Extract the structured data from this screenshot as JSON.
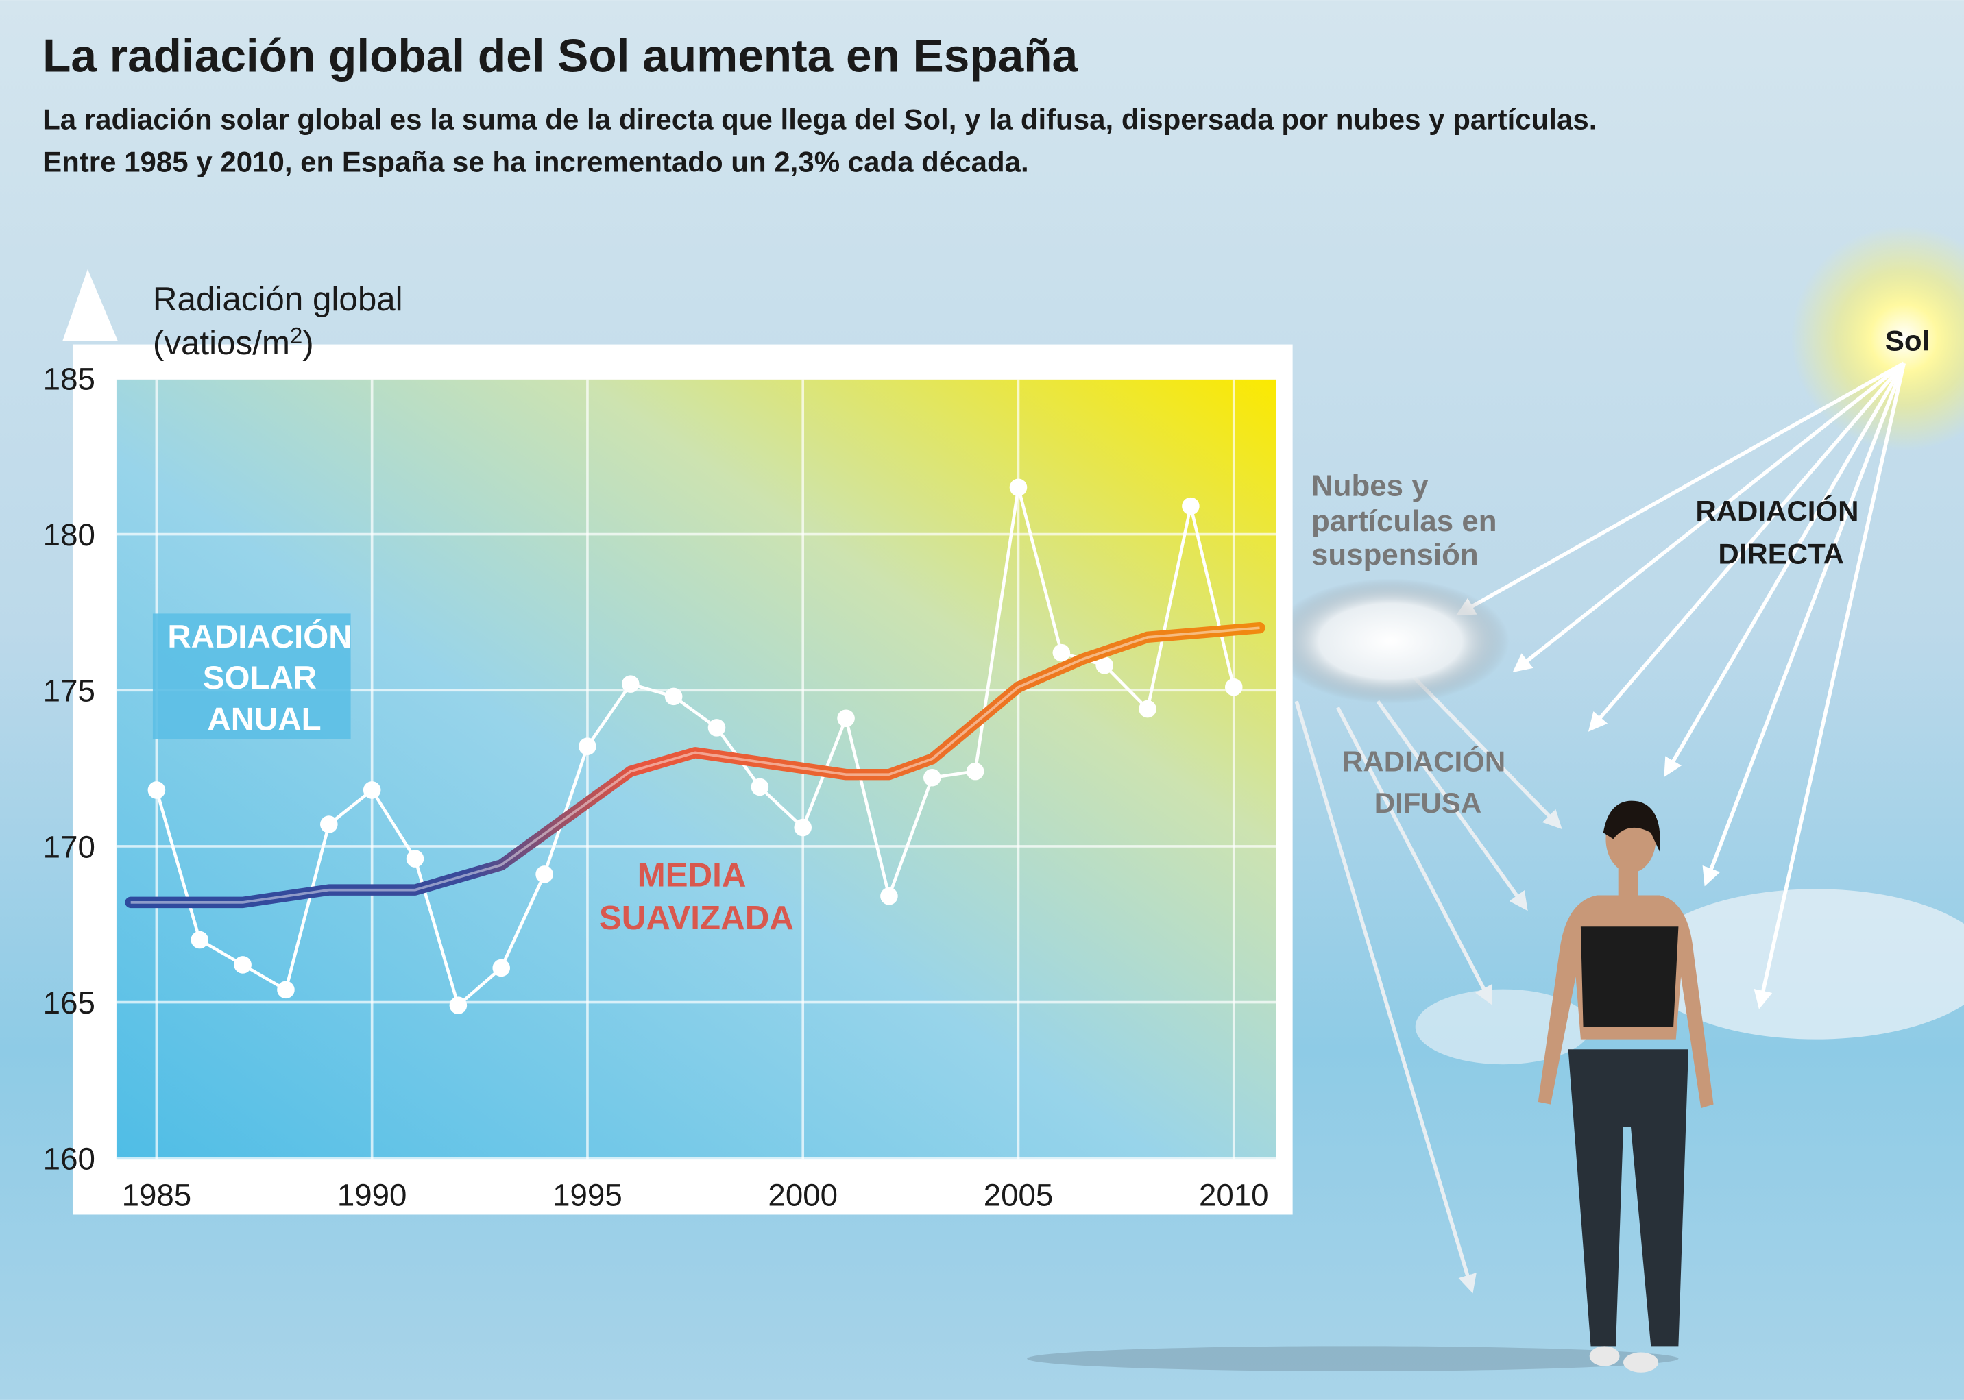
{
  "header": {
    "title": "La radiación global del Sol aumenta en España",
    "subtitle_line1": "La radiación solar global es la suma de la directa que llega del Sol, y la difusa, dispersada por nubes y partículas.",
    "subtitle_line2": "Entre 1985 y 2010, en España se ha incrementado un 2,3% cada década."
  },
  "illustration": {
    "sun_label": "Sol",
    "clouds_label": [
      "Nubes y",
      "partículas en",
      "suspensión"
    ],
    "direct_label": [
      "RADIACIÓN",
      "DIRECTA"
    ],
    "diffuse_label": [
      "RADIACIÓN",
      "DIFUSA"
    ]
  },
  "chart_data": {
    "type": "line",
    "ylabel_line1": "Radiación global",
    "ylabel_line2": "(vatios/m",
    "ylabel_sup": "2",
    "ylabel_close": ")",
    "ylim": [
      160,
      185
    ],
    "yticks": [
      "185",
      "180",
      "175",
      "170",
      "165",
      "160"
    ],
    "yticks_values": [
      185,
      180,
      175,
      170,
      165,
      160
    ],
    "xticks": [
      "1985",
      "1990",
      "1995",
      "2000",
      "2005",
      "2010"
    ],
    "xticks_values": [
      1985,
      1990,
      1995,
      2000,
      2005,
      2010
    ],
    "grid": true,
    "colors": {
      "annual": "#ffffff",
      "smooth_start": "#2e4a9e",
      "smooth_mid": "#e8553e",
      "smooth_end": "#f08a10"
    },
    "series": [
      {
        "name": "RADIACIÓN SOLAR ANUAL",
        "label_lines": [
          "RADIACIÓN",
          "SOLAR",
          "ANUAL"
        ],
        "x": [
          1985,
          1986,
          1987,
          1988,
          1989,
          1990,
          1991,
          1992,
          1993,
          1994,
          1995,
          1996,
          1997,
          1998,
          1999,
          2000,
          2001,
          2002,
          2003,
          2004,
          2005,
          2006,
          2007,
          2008,
          2009,
          2010
        ],
        "values": [
          171.8,
          167.0,
          166.2,
          165.4,
          170.7,
          171.8,
          169.6,
          164.9,
          166.1,
          169.1,
          173.2,
          175.2,
          174.8,
          173.8,
          171.9,
          170.6,
          174.1,
          168.4,
          172.2,
          172.4,
          181.5,
          176.2,
          175.8,
          174.4,
          180.9,
          175.1
        ]
      },
      {
        "name": "MEDIA SUAVIZADA",
        "label_lines": [
          "MEDIA",
          "SUAVIZADA"
        ],
        "x": [
          1984.4,
          1987,
          1989,
          1991,
          1993,
          1996,
          1997.5,
          2001,
          2002,
          2003,
          2005,
          2006.5,
          2008,
          2010.6
        ],
        "values": [
          168.2,
          168.2,
          168.6,
          168.6,
          169.4,
          172.4,
          173.0,
          172.3,
          172.3,
          172.8,
          175.1,
          176.0,
          176.7,
          177.0
        ]
      }
    ]
  }
}
